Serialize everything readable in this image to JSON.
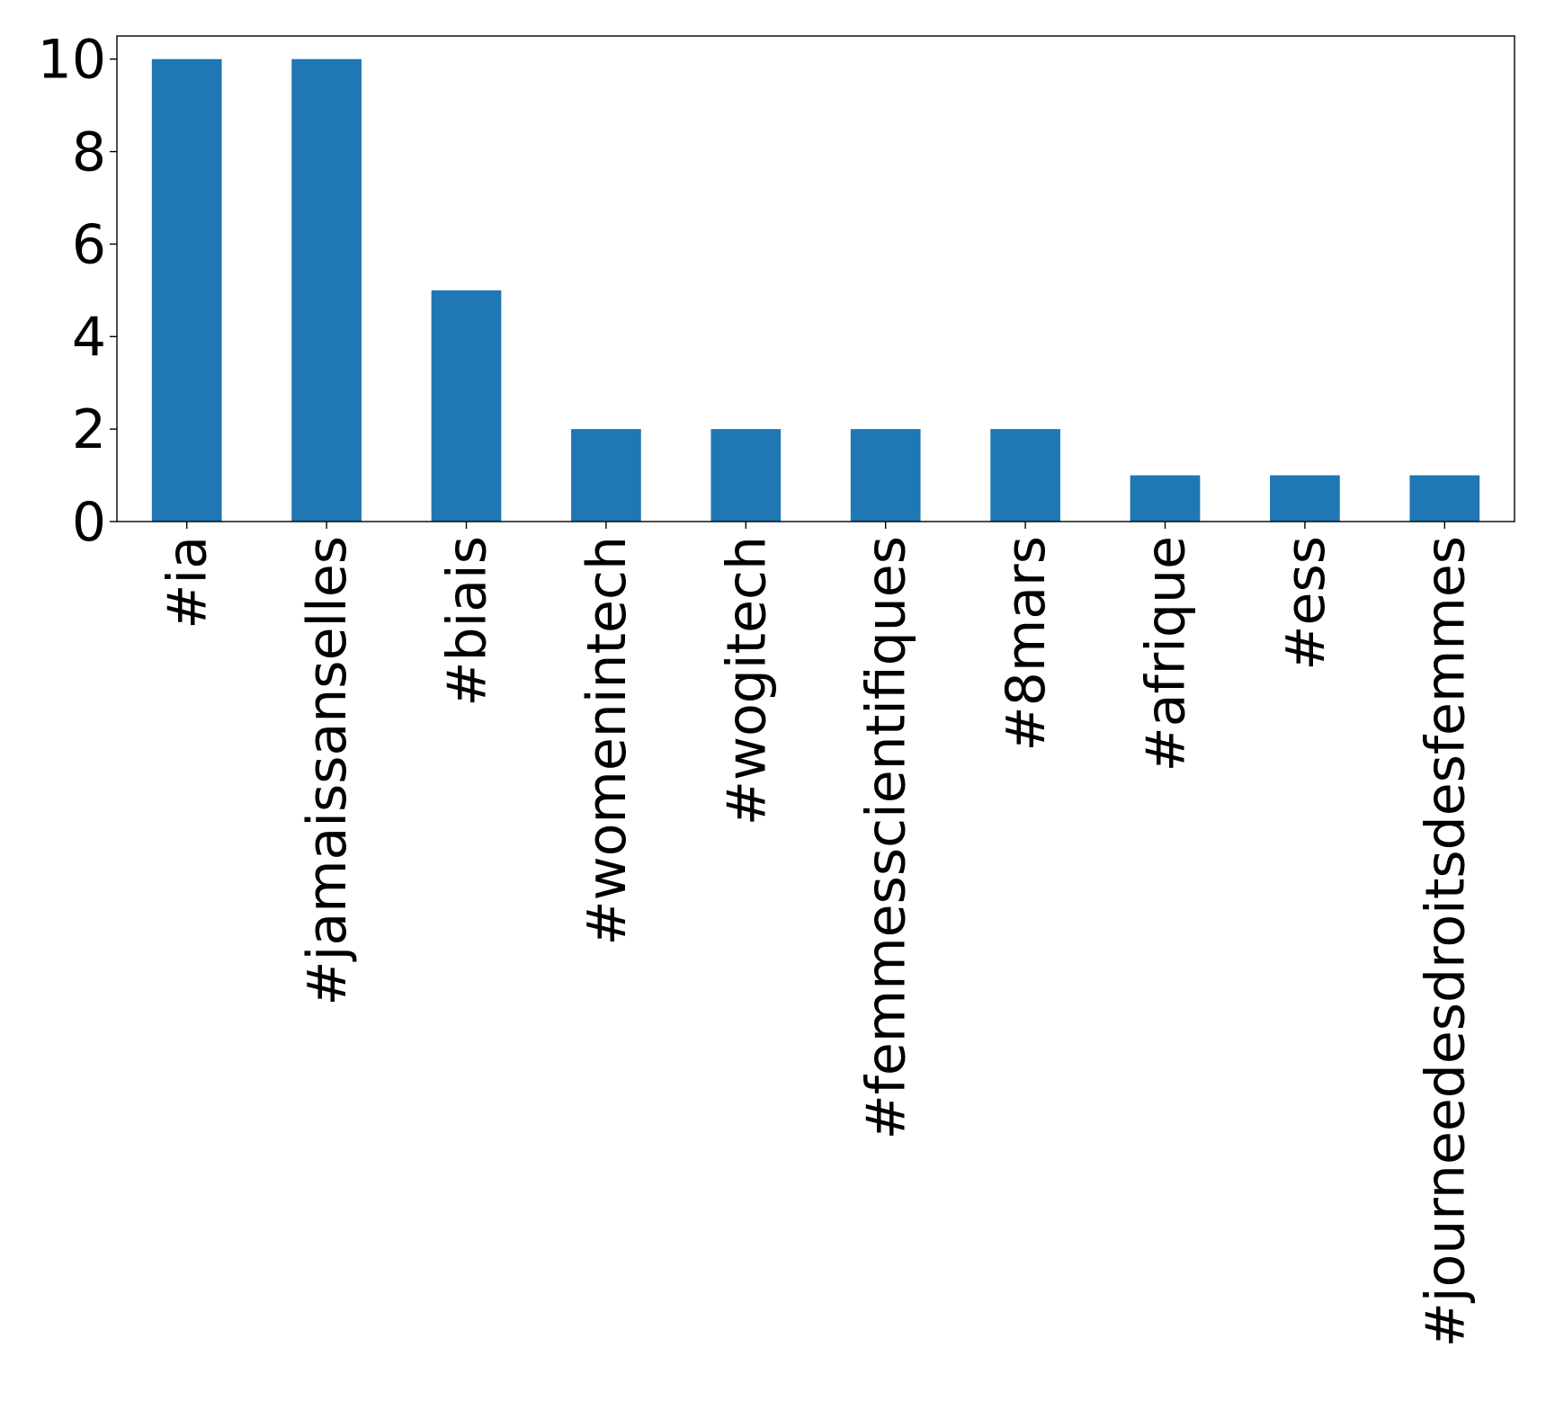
{
  "chart_data": {
    "type": "bar",
    "title": "",
    "xlabel": "",
    "ylabel": "",
    "categories": [
      "#ia",
      "#jamaissanselles",
      "#biais",
      "#womenintech",
      "#wogitech",
      "#femmesscientifiques",
      "#8mars",
      "#afrique",
      "#ess",
      "#journeedesdroitsdesfemmes"
    ],
    "values": [
      10,
      10,
      5,
      2,
      2,
      2,
      2,
      1,
      1,
      1
    ],
    "ylim": [
      0,
      10.5
    ],
    "yticks": [
      0,
      2,
      4,
      6,
      8,
      10
    ],
    "bar_color": "#1f77b4",
    "grid": false,
    "legend": "none"
  }
}
